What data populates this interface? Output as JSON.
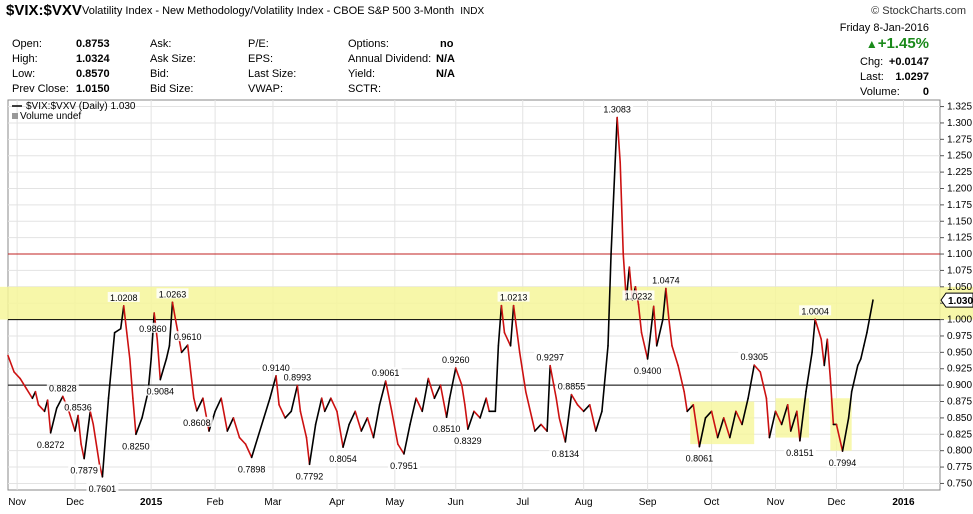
{
  "header": {
    "symbol": "$VIX:$VXV",
    "full_name": "Volatility Index - New Methodology/Volatility Index - CBOE S&P 500 3-Month",
    "exchange": "INDX",
    "credit": "© StockCharts.com"
  },
  "quote": {
    "open_label": "Open:",
    "open": "0.8753",
    "high_label": "High:",
    "high": "1.0324",
    "low_label": "Low:",
    "low": "0.8570",
    "prev_close_label": "Prev Close:",
    "prev_close": "1.0150",
    "ask_label": "Ask:",
    "ask_size_label": "Ask Size:",
    "bid_label": "Bid:",
    "bid_size_label": "Bid Size:",
    "pe_label": "P/E:",
    "eps_label": "EPS:",
    "last_size_label": "Last Size:",
    "vwap_label": "VWAP:",
    "options_label": "Options:",
    "options": "no",
    "annual_dividend_label": "Annual Dividend:",
    "annual_dividend": "N/A",
    "yield_label": "Yield:",
    "yield": "N/A",
    "sctr_label": "SCTR:",
    "date": "Friday 8-Jan-2016",
    "pct_change": "+1.45%",
    "chg_label": "Chg:",
    "chg": "+0.0147",
    "last_label": "Last:",
    "last": "1.0297",
    "volume_label": "Volume:",
    "volume": "0"
  },
  "chart_data": {
    "type": "line",
    "legend": "$VIX:$VXV (Daily) 1.030",
    "legend_sub": "Volume undef",
    "current_value_label": "1.030",
    "ylim": [
      0.74,
      1.335
    ],
    "y_ticks": [
      0.75,
      0.775,
      0.8,
      0.825,
      0.85,
      0.875,
      0.9,
      0.925,
      0.95,
      0.975,
      1.0,
      1.025,
      1.05,
      1.075,
      1.1,
      1.125,
      1.15,
      1.175,
      1.2,
      1.225,
      1.25,
      1.275,
      1.3,
      1.325
    ],
    "x_range": [
      0,
      306
    ],
    "x_ticks": [
      {
        "label": "Nov",
        "x": 3
      },
      {
        "label": "Dec",
        "x": 22
      },
      {
        "label": "2015",
        "x": 47
      },
      {
        "label": "Feb",
        "x": 68
      },
      {
        "label": "Mar",
        "x": 87
      },
      {
        "label": "Apr",
        "x": 108
      },
      {
        "label": "May",
        "x": 127
      },
      {
        "label": "Jun",
        "x": 147
      },
      {
        "label": "Jul",
        "x": 169
      },
      {
        "label": "Aug",
        "x": 189
      },
      {
        "label": "Sep",
        "x": 210
      },
      {
        "label": "Oct",
        "x": 231
      },
      {
        "label": "Nov",
        "x": 252
      },
      {
        "label": "Dec",
        "x": 272
      },
      {
        "label": "2016",
        "x": 294
      }
    ],
    "reference_lines": [
      {
        "value": 1.1,
        "color": "#c02020"
      },
      {
        "value": 1.0,
        "color": "#000000"
      },
      {
        "value": 0.9,
        "color": "#000000"
      }
    ],
    "series": [
      {
        "points": [
          [
            0,
            0.945
          ],
          [
            2,
            0.92
          ],
          [
            4,
            0.91
          ],
          [
            6,
            0.895
          ],
          [
            8,
            0.88
          ],
          [
            9,
            0.89
          ],
          [
            10,
            0.87
          ],
          [
            12,
            0.86
          ],
          [
            13,
            0.877
          ],
          [
            14,
            0.8272
          ],
          [
            16,
            0.865
          ],
          [
            18,
            0.8828
          ],
          [
            20,
            0.86
          ],
          [
            22,
            0.83
          ],
          [
            23,
            0.8536
          ],
          [
            24,
            0.81
          ],
          [
            25,
            0.7879
          ],
          [
            27,
            0.86
          ],
          [
            28,
            0.84
          ],
          [
            30,
            0.78
          ],
          [
            31,
            0.7601
          ],
          [
            33,
            0.88
          ],
          [
            35,
            0.98
          ],
          [
            37,
            0.986
          ],
          [
            38,
            1.0208
          ],
          [
            39,
            0.98
          ],
          [
            40,
            0.94
          ],
          [
            41,
            0.88
          ],
          [
            42,
            0.825
          ],
          [
            44,
            0.85
          ],
          [
            46,
            0.89
          ],
          [
            47,
            0.94
          ],
          [
            48,
            1.01
          ],
          [
            49,
            0.97
          ],
          [
            50,
            0.9084
          ],
          [
            52,
            0.94
          ],
          [
            53,
            0.96
          ],
          [
            54,
            1.0263
          ],
          [
            55,
            1.0
          ],
          [
            57,
            0.95
          ],
          [
            59,
            0.961
          ],
          [
            60,
            0.92
          ],
          [
            61,
            0.88
          ],
          [
            62,
            0.8608
          ],
          [
            64,
            0.88
          ],
          [
            66,
            0.83
          ],
          [
            68,
            0.86
          ],
          [
            70,
            0.88
          ],
          [
            72,
            0.83
          ],
          [
            74,
            0.85
          ],
          [
            76,
            0.82
          ],
          [
            78,
            0.81
          ],
          [
            80,
            0.7898
          ],
          [
            82,
            0.82
          ],
          [
            84,
            0.85
          ],
          [
            86,
            0.88
          ],
          [
            88,
            0.914
          ],
          [
            89,
            0.87
          ],
          [
            91,
            0.85
          ],
          [
            93,
            0.86
          ],
          [
            95,
            0.8993
          ],
          [
            96,
            0.86
          ],
          [
            98,
            0.82
          ],
          [
            99,
            0.7792
          ],
          [
            101,
            0.84
          ],
          [
            103,
            0.88
          ],
          [
            104,
            0.86
          ],
          [
            106,
            0.88
          ],
          [
            108,
            0.86
          ],
          [
            110,
            0.8054
          ],
          [
            112,
            0.84
          ],
          [
            114,
            0.86
          ],
          [
            116,
            0.83
          ],
          [
            118,
            0.85
          ],
          [
            120,
            0.82
          ],
          [
            122,
            0.87
          ],
          [
            124,
            0.9061
          ],
          [
            126,
            0.86
          ],
          [
            128,
            0.81
          ],
          [
            130,
            0.7951
          ],
          [
            132,
            0.84
          ],
          [
            134,
            0.88
          ],
          [
            136,
            0.86
          ],
          [
            138,
            0.91
          ],
          [
            140,
            0.88
          ],
          [
            142,
            0.9
          ],
          [
            144,
            0.851
          ],
          [
            145,
            0.88
          ],
          [
            147,
            0.926
          ],
          [
            149,
            0.9
          ],
          [
            150,
            0.87
          ],
          [
            151,
            0.8329
          ],
          [
            153,
            0.86
          ],
          [
            155,
            0.85
          ],
          [
            157,
            0.88
          ],
          [
            158,
            0.86
          ],
          [
            160,
            0.86
          ],
          [
            161,
            0.96
          ],
          [
            162,
            1.0213
          ],
          [
            163,
            0.98
          ],
          [
            165,
            0.96
          ],
          [
            166,
            1.0213
          ],
          [
            168,
            0.95
          ],
          [
            170,
            0.89
          ],
          [
            172,
            0.85
          ],
          [
            173,
            0.83
          ],
          [
            175,
            0.84
          ],
          [
            177,
            0.8297
          ],
          [
            178,
            0.9297
          ],
          [
            180,
            0.88
          ],
          [
            181,
            0.85
          ],
          [
            183,
            0.8134
          ],
          [
            185,
            0.8855
          ],
          [
            187,
            0.87
          ],
          [
            189,
            0.86
          ],
          [
            191,
            0.87
          ],
          [
            193,
            0.83
          ],
          [
            195,
            0.86
          ],
          [
            197,
            0.96
          ],
          [
            198,
            1.1
          ],
          [
            200,
            1.3083
          ],
          [
            201,
            1.24
          ],
          [
            202,
            1.1
          ],
          [
            203,
            1.03
          ],
          [
            204,
            1.08
          ],
          [
            205,
            1.03
          ],
          [
            206,
            1.05
          ],
          [
            207,
            1.0232
          ],
          [
            208,
            0.98
          ],
          [
            210,
            0.94
          ],
          [
            212,
            1.02
          ],
          [
            213,
            0.96
          ],
          [
            215,
            1.0
          ],
          [
            216,
            1.0474
          ],
          [
            217,
            1.0
          ],
          [
            218,
            0.96
          ],
          [
            220,
            0.93
          ],
          [
            222,
            0.89
          ],
          [
            223,
            0.86
          ],
          [
            225,
            0.87
          ],
          [
            227,
            0.8061
          ],
          [
            229,
            0.85
          ],
          [
            231,
            0.86
          ],
          [
            233,
            0.82
          ],
          [
            235,
            0.85
          ],
          [
            237,
            0.82
          ],
          [
            239,
            0.86
          ],
          [
            241,
            0.84
          ],
          [
            243,
            0.88
          ],
          [
            245,
            0.9305
          ],
          [
            247,
            0.92
          ],
          [
            249,
            0.88
          ],
          [
            250,
            0.82
          ],
          [
            252,
            0.86
          ],
          [
            254,
            0.84
          ],
          [
            256,
            0.87
          ],
          [
            257,
            0.83
          ],
          [
            259,
            0.86
          ],
          [
            260,
            0.8151
          ],
          [
            262,
            0.89
          ],
          [
            264,
            0.95
          ],
          [
            265,
            1.0004
          ],
          [
            267,
            0.97
          ],
          [
            268,
            0.93
          ],
          [
            269,
            0.97
          ],
          [
            270,
            0.91
          ],
          [
            271,
            0.84
          ],
          [
            272,
            0.84
          ],
          [
            274,
            0.7994
          ],
          [
            276,
            0.85
          ],
          [
            277,
            0.89
          ],
          [
            279,
            0.93
          ],
          [
            280,
            0.94
          ],
          [
            281,
            0.96
          ],
          [
            282,
            0.98
          ],
          [
            284,
            1.0297
          ]
        ],
        "rising_color": "#000000",
        "falling_color": "#cc1111"
      }
    ],
    "labels": [
      {
        "x": 14,
        "y": 0.8272,
        "text": "0.8272",
        "pos": "below"
      },
      {
        "x": 18,
        "y": 0.8828,
        "text": "0.8828",
        "pos": "above"
      },
      {
        "x": 23,
        "y": 0.8536,
        "text": "0.8536",
        "pos": "above"
      },
      {
        "x": 25,
        "y": 0.7879,
        "text": "0.7879",
        "pos": "below"
      },
      {
        "x": 31,
        "y": 0.7601,
        "text": "0.7601",
        "pos": "below"
      },
      {
        "x": 38,
        "y": 1.0208,
        "text": "1.0208",
        "pos": "above"
      },
      {
        "x": 41,
        "y": 0.986,
        "text": "0.9860",
        "pos": "right"
      },
      {
        "x": 42,
        "y": 0.825,
        "text": "0.8250",
        "pos": "below"
      },
      {
        "x": 50,
        "y": 0.9084,
        "text": "0.9084",
        "pos": "below"
      },
      {
        "x": 54,
        "y": 1.0263,
        "text": "1.0263",
        "pos": "above"
      },
      {
        "x": 59,
        "y": 0.961,
        "text": "0.9610",
        "pos": "above"
      },
      {
        "x": 62,
        "y": 0.8608,
        "text": "0.8608",
        "pos": "below"
      },
      {
        "x": 80,
        "y": 0.7898,
        "text": "0.7898",
        "pos": "below"
      },
      {
        "x": 88,
        "y": 0.914,
        "text": "0.9140",
        "pos": "above"
      },
      {
        "x": 95,
        "y": 0.8993,
        "text": "0.8993",
        "pos": "above"
      },
      {
        "x": 99,
        "y": 0.7792,
        "text": "0.7792",
        "pos": "below"
      },
      {
        "x": 110,
        "y": 0.8054,
        "text": "0.8054",
        "pos": "below"
      },
      {
        "x": 124,
        "y": 0.9061,
        "text": "0.9061",
        "pos": "above"
      },
      {
        "x": 130,
        "y": 0.7951,
        "text": "0.7951",
        "pos": "below"
      },
      {
        "x": 144,
        "y": 0.851,
        "text": "0.8510",
        "pos": "below"
      },
      {
        "x": 147,
        "y": 0.926,
        "text": "0.9260",
        "pos": "above"
      },
      {
        "x": 151,
        "y": 0.8329,
        "text": "0.8329",
        "pos": "below"
      },
      {
        "x": 166,
        "y": 1.0213,
        "text": "1.0213",
        "pos": "above"
      },
      {
        "x": 178,
        "y": 0.9297,
        "text": "0.9297",
        "pos": "above"
      },
      {
        "x": 183,
        "y": 0.8134,
        "text": "0.8134",
        "pos": "below"
      },
      {
        "x": 185,
        "y": 0.8855,
        "text": "0.8855",
        "pos": "above"
      },
      {
        "x": 200,
        "y": 1.3083,
        "text": "1.3083",
        "pos": "above"
      },
      {
        "x": 207,
        "y": 1.0232,
        "text": "1.0232",
        "pos": "above"
      },
      {
        "x": 210,
        "y": 0.94,
        "text": "0.9400",
        "pos": "below"
      },
      {
        "x": 216,
        "y": 1.0474,
        "text": "1.0474",
        "pos": "above"
      },
      {
        "x": 227,
        "y": 0.8061,
        "text": "0.8061",
        "pos": "below"
      },
      {
        "x": 245,
        "y": 0.9305,
        "text": "0.9305",
        "pos": "above"
      },
      {
        "x": 260,
        "y": 0.8151,
        "text": "0.8151",
        "pos": "below"
      },
      {
        "x": 265,
        "y": 1.0004,
        "text": "1.0004",
        "pos": "above"
      },
      {
        "x": 274,
        "y": 0.7994,
        "text": "0.7994",
        "pos": "below"
      }
    ],
    "highlight_band": {
      "y0": 1.0,
      "y1": 1.05,
      "color": "#f6f69a"
    },
    "highlight_boxes": [
      {
        "x0": 224,
        "x1": 245,
        "y0": 0.81,
        "y1": 0.875
      },
      {
        "x0": 252,
        "x1": 263,
        "y0": 0.82,
        "y1": 0.88
      },
      {
        "x0": 270,
        "x1": 277,
        "y0": 0.8,
        "y1": 0.88
      }
    ],
    "colors": {
      "grid": "#e3e3e3",
      "highlight": "#f6f69a",
      "label_bg": "#ffffff"
    }
  }
}
